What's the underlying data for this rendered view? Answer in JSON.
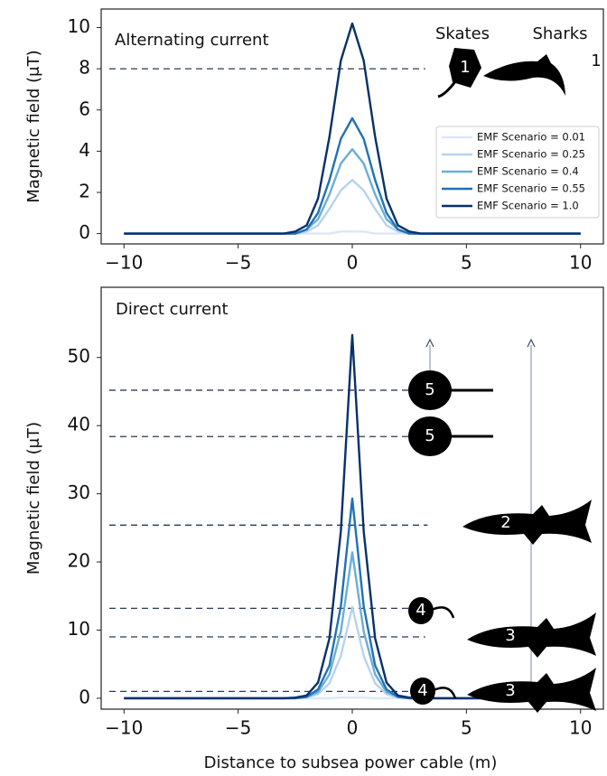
{
  "chart_data": [
    {
      "type": "line",
      "annotations": [
        "Alternating current",
        "Skates",
        "Sharks"
      ],
      "species_labels": [
        "1",
        "1"
      ],
      "ylabel": "Magnetic field (μT)",
      "x": [
        -10,
        -3,
        -2.5,
        -2,
        -1.5,
        -1,
        -0.5,
        0,
        0.5,
        1,
        1.5,
        2,
        2.5,
        3,
        10
      ],
      "series": [
        {
          "name": "EMF Scenario = 0.01",
          "color": "#dbe7f5",
          "values": [
            0,
            0,
            0,
            0,
            0,
            0,
            0.1,
            0.1,
            0.1,
            0,
            0,
            0,
            0,
            0,
            0
          ]
        },
        {
          "name": "EMF Scenario = 0.25",
          "color": "#b7d3ee",
          "values": [
            0,
            0,
            0,
            0.1,
            0.4,
            1.2,
            2.1,
            2.6,
            2.1,
            1.2,
            0.4,
            0.1,
            0,
            0,
            0
          ]
        },
        {
          "name": "EMF Scenario = 0.4",
          "color": "#6aaed6",
          "values": [
            0,
            0,
            0,
            0.2,
            0.7,
            1.9,
            3.4,
            4.1,
            3.4,
            1.9,
            0.7,
            0.2,
            0,
            0,
            0
          ]
        },
        {
          "name": "EMF Scenario = 0.55",
          "color": "#2171b5",
          "values": [
            0,
            0,
            0,
            0.2,
            1.0,
            2.6,
            4.6,
            5.6,
            4.6,
            2.6,
            1.0,
            0.2,
            0,
            0,
            0
          ]
        },
        {
          "name": "EMF Scenario = 1.0",
          "color": "#08306b",
          "values": [
            0,
            0,
            0.1,
            0.4,
            1.7,
            4.7,
            8.4,
            10.2,
            8.4,
            4.7,
            1.7,
            0.4,
            0.1,
            0,
            0
          ]
        }
      ],
      "hlines": [
        8
      ],
      "xlim": [
        -11,
        11
      ],
      "ylim": [
        -0.5,
        10.9
      ],
      "xticks": [
        {
          "value": -10,
          "label": "−10"
        },
        {
          "value": -5,
          "label": "−5"
        },
        0,
        5,
        10
      ],
      "yticks": [
        0,
        2,
        4,
        6,
        8,
        10
      ],
      "legend": "center right"
    },
    {
      "type": "line",
      "annotations": [
        "Direct current"
      ],
      "species_labels": [
        "5",
        "5",
        "2",
        "4",
        "3",
        "4",
        "3"
      ],
      "ylabel": "Magnetic field (μT)",
      "xlabel": "Distance to subsea power cable (m)",
      "x": [
        -10,
        -3,
        -2.5,
        -2,
        -1.5,
        -1,
        -0.5,
        0,
        0.5,
        1,
        1.5,
        2,
        2.5,
        3,
        10
      ],
      "series": [
        {
          "color": "#dbe7f5",
          "values": [
            0,
            0,
            0,
            0,
            0,
            0,
            0.1,
            0.1,
            0.1,
            0,
            0,
            0,
            0,
            0,
            0
          ]
        },
        {
          "color": "#b7d3ee",
          "values": [
            0,
            0,
            0,
            0.1,
            0.6,
            2.2,
            6.2,
            13.4,
            6.2,
            2.2,
            0.6,
            0.1,
            0,
            0,
            0
          ]
        },
        {
          "color": "#6aaed6",
          "values": [
            0,
            0,
            0,
            0.2,
            0.9,
            3.5,
            9.8,
            21.4,
            9.8,
            3.5,
            0.9,
            0.2,
            0,
            0,
            0
          ]
        },
        {
          "color": "#2171b5",
          "values": [
            0,
            0,
            0,
            0.2,
            1.3,
            4.8,
            13.5,
            29.3,
            13.5,
            4.8,
            1.3,
            0.2,
            0,
            0,
            0
          ]
        },
        {
          "color": "#08306b",
          "values": [
            0,
            0,
            0.1,
            0.4,
            2.3,
            8.8,
            24.5,
            53.3,
            24.5,
            8.8,
            2.3,
            0.4,
            0.1,
            0,
            0
          ]
        }
      ],
      "hlines": [
        45.2,
        38.4,
        25.4,
        13.2,
        9,
        1
      ],
      "xlim": [
        -11,
        11
      ],
      "ylim": [
        -1.6,
        60.3
      ],
      "xticks": [
        {
          "value": -10,
          "label": "−10"
        },
        {
          "value": -5,
          "label": "−5"
        },
        0,
        5,
        10
      ],
      "yticks": [
        0,
        10,
        20,
        30,
        40,
        50
      ],
      "legend": false
    }
  ]
}
